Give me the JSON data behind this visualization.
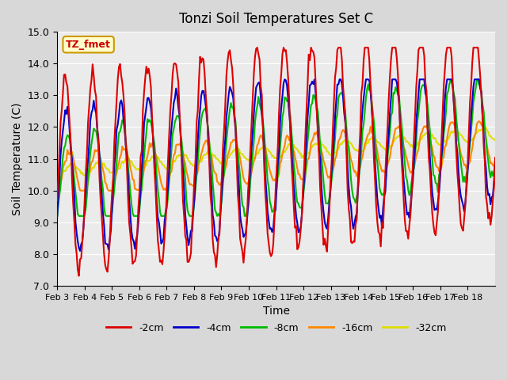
{
  "title": "Tonzi Soil Temperatures Set C",
  "xlabel": "Time",
  "ylabel": "Soil Temperature (C)",
  "ylim": [
    7.0,
    15.0
  ],
  "yticks": [
    7.0,
    8.0,
    9.0,
    10.0,
    11.0,
    12.0,
    13.0,
    14.0,
    15.0
  ],
  "xtick_labels": [
    "Feb 3",
    "Feb 4",
    "Feb 5",
    "Feb 6",
    "Feb 7",
    "Feb 8",
    "Feb 9",
    "Feb 10",
    "Feb 11",
    "Feb 12",
    "Feb 13",
    "Feb 14",
    "Feb 15",
    "Feb 16",
    "Feb 17",
    "Feb 18"
  ],
  "annotation_text": "TZ_fmet",
  "annotation_bg": "#ffffcc",
  "annotation_border": "#cc9900",
  "colors": {
    "-2cm": "#dd0000",
    "-4cm": "#0000cc",
    "-8cm": "#00bb00",
    "-16cm": "#ff8800",
    "-32cm": "#dddd00"
  },
  "line_width": 1.5,
  "legend_labels": [
    "-2cm",
    "-4cm",
    "-8cm",
    "-16cm",
    "-32cm"
  ]
}
